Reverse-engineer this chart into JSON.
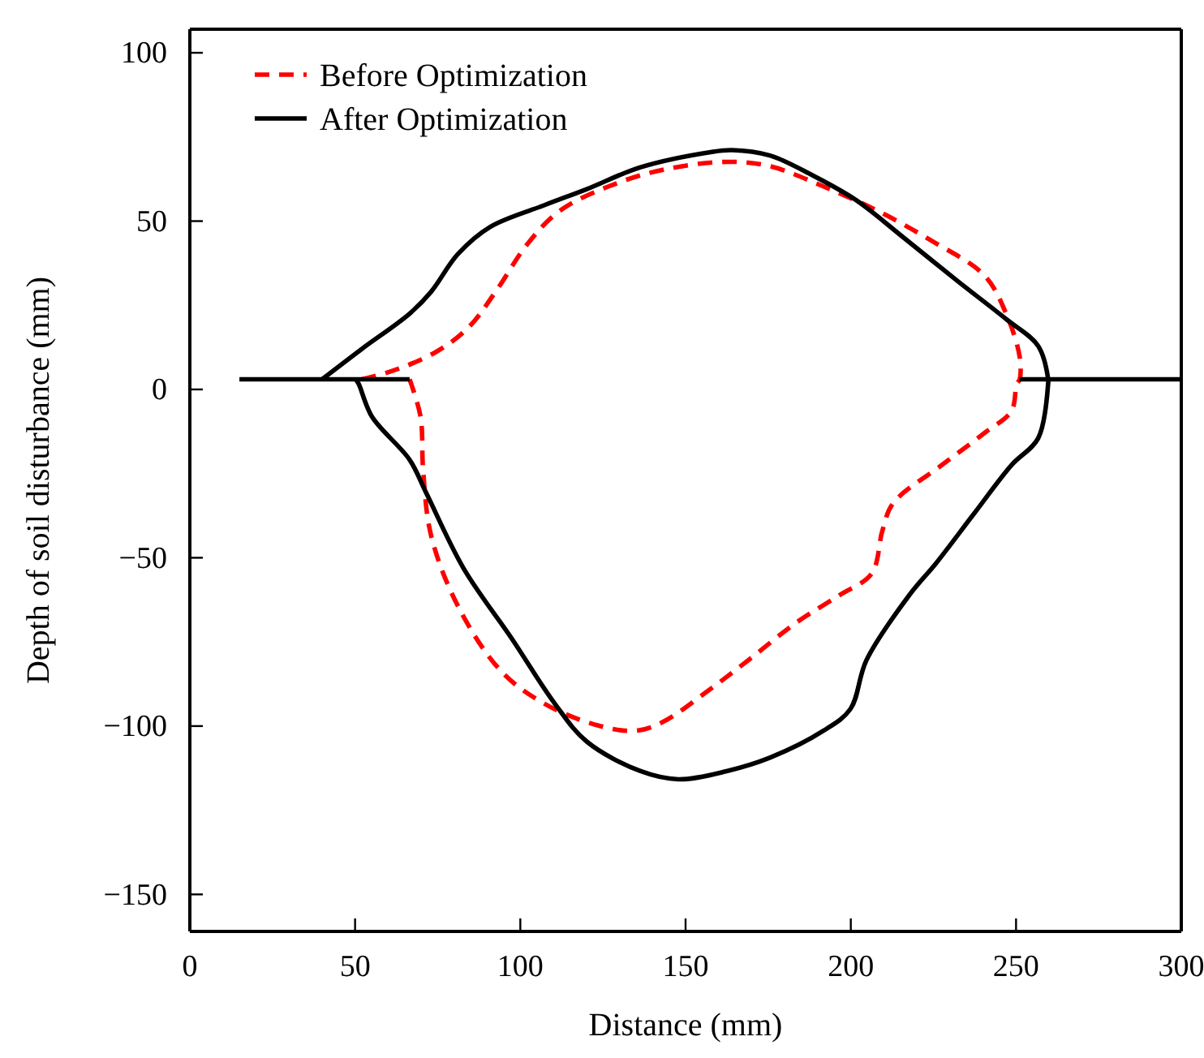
{
  "chart_data": {
    "type": "line",
    "xlabel": "Distance (mm)",
    "ylabel": "Depth of soil disturbance (mm)",
    "xlim": [
      0,
      300
    ],
    "xticks": [
      0,
      50,
      100,
      150,
      200,
      250,
      300
    ],
    "ylim": [
      -161,
      107
    ],
    "yticks": [
      100,
      50,
      0,
      {
        "value": -50,
        "label": "−50"
      },
      {
        "value": -100,
        "label": "−100"
      },
      {
        "value": -150,
        "label": "−150"
      }
    ],
    "grid": false,
    "legend": "top left",
    "marker": "none",
    "series": [
      {
        "name": "Before Optimization",
        "color": "#ff0000",
        "line_style": "dashed",
        "x": [
          52,
          61.6,
          74.6,
          84.4,
          92.5,
          102.3,
          112,
          126.7,
          142.9,
          162.4,
          175.5,
          191.7,
          208,
          224.2,
          240.5,
          247,
          251.1,
          251.1,
          250.2,
          248.6,
          240.5,
          227.5,
          212.8,
          209.6,
          206.3,
          196.6,
          183.6,
          168.9,
          156,
          142.9,
          134.8,
          123.4,
          107.2,
          94.1,
          81.1,
          73,
          70.6,
          69.8,
          66.5
        ],
        "values": [
          3,
          5.6,
          11.2,
          18.5,
          29,
          43.4,
          53.1,
          60.3,
          65.2,
          67.6,
          66.3,
          60.3,
          53.1,
          44.3,
          33.8,
          22.5,
          9.7,
          3,
          1.6,
          -6.4,
          -12.9,
          -22.5,
          -33.8,
          -41.8,
          -54.7,
          -61.1,
          -69.2,
          -80.5,
          -90.1,
          -98.9,
          -101.4,
          -99.8,
          -93.3,
          -83.6,
          -64.3,
          -43.4,
          -24.1,
          -8.1,
          3
        ]
      },
      {
        "name": "After Optimization",
        "color": "#000000",
        "line_style": "solid",
        "x": [
          40,
          52,
          66.5,
          73,
          81.1,
          90.9,
          107.2,
          120.1,
          136.4,
          157.6,
          164,
          175.5,
          188.4,
          201.5,
          216.1,
          232.3,
          247,
          256.7,
          259.7,
          259.7,
          256.7,
          248.6,
          237.2,
          225.9,
          217.7,
          204.7,
          199.9,
          191.7,
          175.5,
          162.4,
          147.8,
          136.4,
          120.1,
          110.4,
          97.4,
          82.8,
          71.4,
          66.5,
          55.1,
          51.1,
          50.2
        ],
        "values": [
          3,
          12,
          22.5,
          29,
          40.2,
          48.3,
          54.7,
          59.5,
          66,
          70.5,
          71.1,
          69.5,
          63.6,
          56.3,
          45,
          32.2,
          20.9,
          12.9,
          3.2,
          1.6,
          -14.5,
          -22.5,
          -37,
          -51.5,
          -61.1,
          -80.5,
          -94.9,
          -101.4,
          -109.4,
          -113.4,
          -115.8,
          -113.4,
          -104.6,
          -93.3,
          -74,
          -53.1,
          -30.5,
          -20.9,
          -8.1,
          1.6,
          3
        ]
      },
      {
        "color": "#000000",
        "line_style": "solid",
        "x": [
          15,
          66.5,
          160,
          251,
          300
        ],
        "values": [
          3,
          3,
          null,
          3,
          3
        ]
      }
    ]
  }
}
